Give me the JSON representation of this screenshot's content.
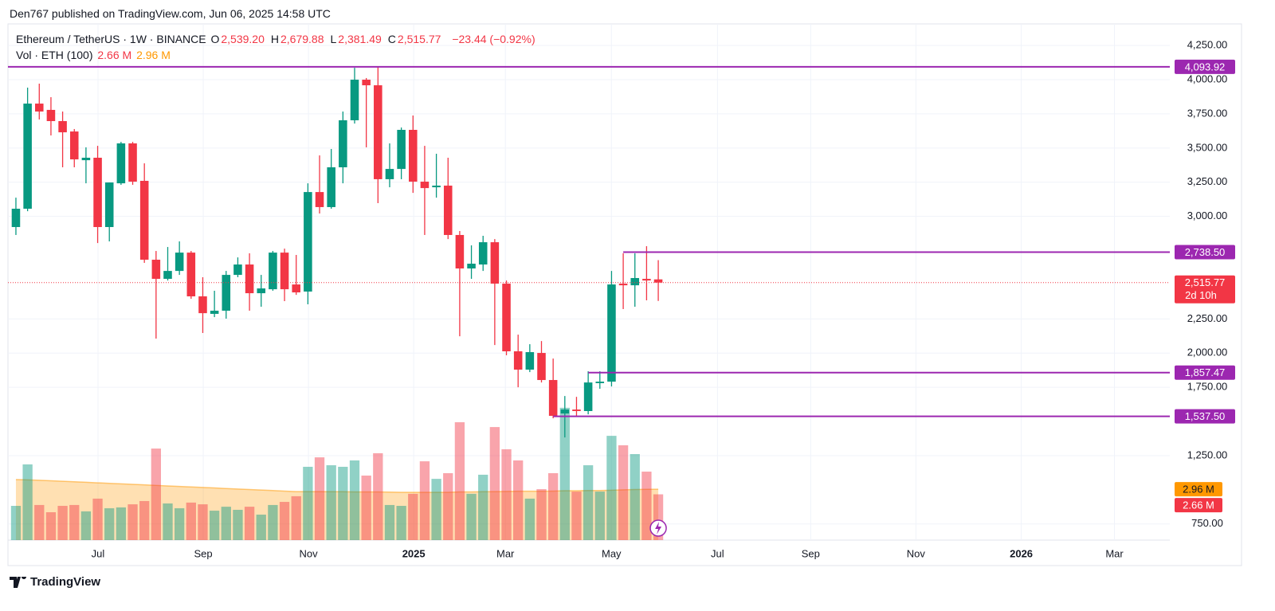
{
  "header": {
    "publisher": "Den767 published on TradingView.com, Jun 06, 2025 14:58 UTC"
  },
  "chart_data": {
    "type": "candlestick",
    "title": "Ethereum / TetherUS · 1W · BINANCE",
    "categories": [
      null,
      null,
      null,
      null,
      null,
      null,
      null,
      null,
      null,
      null,
      null,
      null,
      null,
      null,
      null,
      null,
      null,
      null,
      null,
      null,
      null,
      null,
      null,
      null,
      null,
      null,
      null,
      null,
      null,
      null,
      null,
      null,
      null,
      null,
      null,
      null,
      null,
      null,
      null,
      null,
      null,
      null,
      null,
      null,
      null,
      null,
      null,
      null,
      null,
      null,
      null,
      null,
      null,
      null,
      null,
      null
    ],
    "xlim": [
      -0.68,
      98.8
    ],
    "xticks": [
      {
        "value": 7.03,
        "label": "Jul"
      },
      {
        "value": 16.04,
        "label": "Sep"
      },
      {
        "value": 25.05,
        "label": "Nov"
      },
      {
        "value": 34.06,
        "label": "2025"
      },
      {
        "value": 41.91,
        "label": "Mar"
      },
      {
        "value": 50.99,
        "label": "May"
      },
      {
        "value": 60.07,
        "label": "Jul"
      },
      {
        "value": 68.05,
        "label": "Sep"
      },
      {
        "value": 77.06,
        "label": "Nov"
      },
      {
        "value": 86.08,
        "label": "2026"
      },
      {
        "value": 94.06,
        "label": "Mar"
      }
    ],
    "ylim": [
      632,
      4408
    ],
    "yticks": [
      {
        "value": 4250,
        "label": "4,250.00"
      },
      {
        "value": 4000,
        "label": "4,000.00"
      },
      {
        "value": 3750,
        "label": "3,750.00"
      },
      {
        "value": 3500,
        "label": "3,500.00"
      },
      {
        "value": 3250,
        "label": "3,250.00"
      },
      {
        "value": 3000,
        "label": "3,000.00"
      },
      {
        "value": 2250,
        "label": "2,250.00"
      },
      {
        "value": 2000,
        "label": "2,000.00"
      },
      {
        "value": 1750,
        "label": "1,750.00"
      },
      {
        "value": 1250,
        "label": "1,250.00"
      },
      {
        "value": 750,
        "label": "750.00"
      }
    ],
    "grid": true,
    "up_color": "#089981",
    "down_color": "#f23645",
    "open": [
      2922,
      3056,
      3825,
      3779,
      3697,
      3621,
      3411,
      3429,
      2922,
      3242,
      3534,
      3260,
      2683,
      2543,
      2601,
      2735,
      2415,
      2287,
      2310,
      2572,
      2648,
      2438,
      2467,
      2735,
      2502,
      2450,
      3178,
      3068,
      3359,
      3703,
      4000,
      3959,
      3272,
      3347,
      3633,
      3254,
      3213,
      3225,
      2864,
      2619,
      2648,
      2811,
      2508,
      2013,
      1879,
      2001,
      1803,
      1558,
      1587,
      1576,
      1780,
      1791,
      2508,
      2496,
      2543,
      2539.2
    ],
    "high": [
      3137,
      3942,
      3971,
      3872,
      3767,
      3639,
      3505,
      3516,
      3248,
      3545,
      3545,
      3388,
      2747,
      2776,
      2817,
      2747,
      2555,
      2456,
      2601,
      2700,
      2730,
      2572,
      2747,
      2764,
      2718,
      3242,
      3446,
      3493,
      3767,
      4087,
      4012,
      4093,
      3534,
      3650,
      3738,
      3516,
      3458,
      3429,
      2893,
      2788,
      2858,
      2834,
      2531,
      2135,
      2065,
      2088,
      1960,
      1686,
      1680,
      1867,
      1867,
      2601,
      2730,
      2730,
      2782,
      2679.88
    ],
    "low": [
      2864,
      3038,
      3709,
      3592,
      3359,
      3359,
      3242,
      2805,
      2817,
      3231,
      3231,
      2660,
      2106,
      2531,
      2572,
      2397,
      2147,
      2263,
      2252,
      2555,
      2310,
      2339,
      2456,
      2380,
      2426,
      2357,
      3021,
      3056,
      3242,
      3679,
      3505,
      3097,
      3213,
      3272,
      3172,
      2864,
      3137,
      2834,
      2123,
      2543,
      2601,
      2059,
      1984,
      1750,
      1861,
      1785,
      1523,
      1383,
      1541,
      1552,
      1739,
      1756,
      2322,
      2339,
      2386,
      2381.49
    ],
    "close": [
      3056,
      3825,
      3767,
      3697,
      3615,
      3417,
      3429,
      2922,
      3248,
      3534,
      3254,
      2683,
      2543,
      2601,
      2735,
      2415,
      2292,
      2310,
      2572,
      2648,
      2438,
      2473,
      2735,
      2467,
      2444,
      3178,
      3068,
      3359,
      3703,
      4000,
      3959,
      3272,
      3347,
      3633,
      3254,
      3207,
      3225,
      2864,
      2619,
      2654,
      2811,
      2508,
      2013,
      1879,
      2007,
      1803,
      1541,
      1587,
      1576,
      1785,
      1791,
      2502,
      2496,
      2549,
      2531,
      2515.77
    ],
    "ohlc_labels": [
      {
        "key": "O",
        "label": "2,539.20"
      },
      {
        "key": "H",
        "label": "2,679.88"
      },
      {
        "key": "L",
        "label": "2,381.49"
      },
      {
        "key": "C",
        "label": "2,515.77"
      }
    ],
    "change_label": "−23.44 (−0.92%)",
    "last_price_label": "2,515.77",
    "countdown": "2d 10h",
    "level_color": "#9c27b0",
    "levels": [
      {
        "value": 4093.92,
        "label": "4,093.92",
        "x0": -0.68
      },
      {
        "value": 2738.5,
        "label": "2,738.50",
        "x0": 52
      },
      {
        "value": 1857.47,
        "label": "1,857.47",
        "x0": 49
      },
      {
        "value": 1537.5,
        "label": "1,537.50",
        "x0": 46
      }
    ],
    "y2lim": [
      0,
      30
    ],
    "volume": {
      "name": "Vol · ETH (100)",
      "axis": "y2",
      "values": [
        1.99,
        4.4,
        2.04,
        1.62,
        1.99,
        2.04,
        1.67,
        2.41,
        1.85,
        1.9,
        2.08,
        2.27,
        5.32,
        2.13,
        1.85,
        2.18,
        2.08,
        1.71,
        1.94,
        1.76,
        1.94,
        1.48,
        2.04,
        2.22,
        2.55,
        4.26,
        4.81,
        4.35,
        4.26,
        4.63,
        3.75,
        5.05,
        2.04,
        1.99,
        2.69,
        4.58,
        3.56,
        3.89,
        6.85,
        2.69,
        3.8,
        6.57,
        5.28,
        4.63,
        2.41,
        2.96,
        3.89,
        7.69,
        2.82,
        4.35,
        2.82,
        6.06,
        5.51,
        5.0,
        3.98,
        2.66
      ],
      "value_label": "2.66 M",
      "ma": [
        3.52,
        3.5,
        3.48,
        3.45,
        3.42,
        3.39,
        3.36,
        3.33,
        3.3,
        3.27,
        3.24,
        3.21,
        3.18,
        3.15,
        3.12,
        3.09,
        3.06,
        3.03,
        3.0,
        2.97,
        2.94,
        2.91,
        2.88,
        2.85,
        2.82,
        2.82,
        2.82,
        2.81,
        2.81,
        2.8,
        2.8,
        2.8,
        2.79,
        2.78,
        2.78,
        2.78,
        2.78,
        2.78,
        2.8,
        2.8,
        2.81,
        2.82,
        2.83,
        2.84,
        2.84,
        2.84,
        2.85,
        2.87,
        2.87,
        2.88,
        2.88,
        2.9,
        2.92,
        2.94,
        2.95,
        2.96
      ],
      "ma_label": "2.96 M",
      "ma_color": "#ff9800"
    }
  },
  "footer": {
    "brand": "TradingView"
  }
}
